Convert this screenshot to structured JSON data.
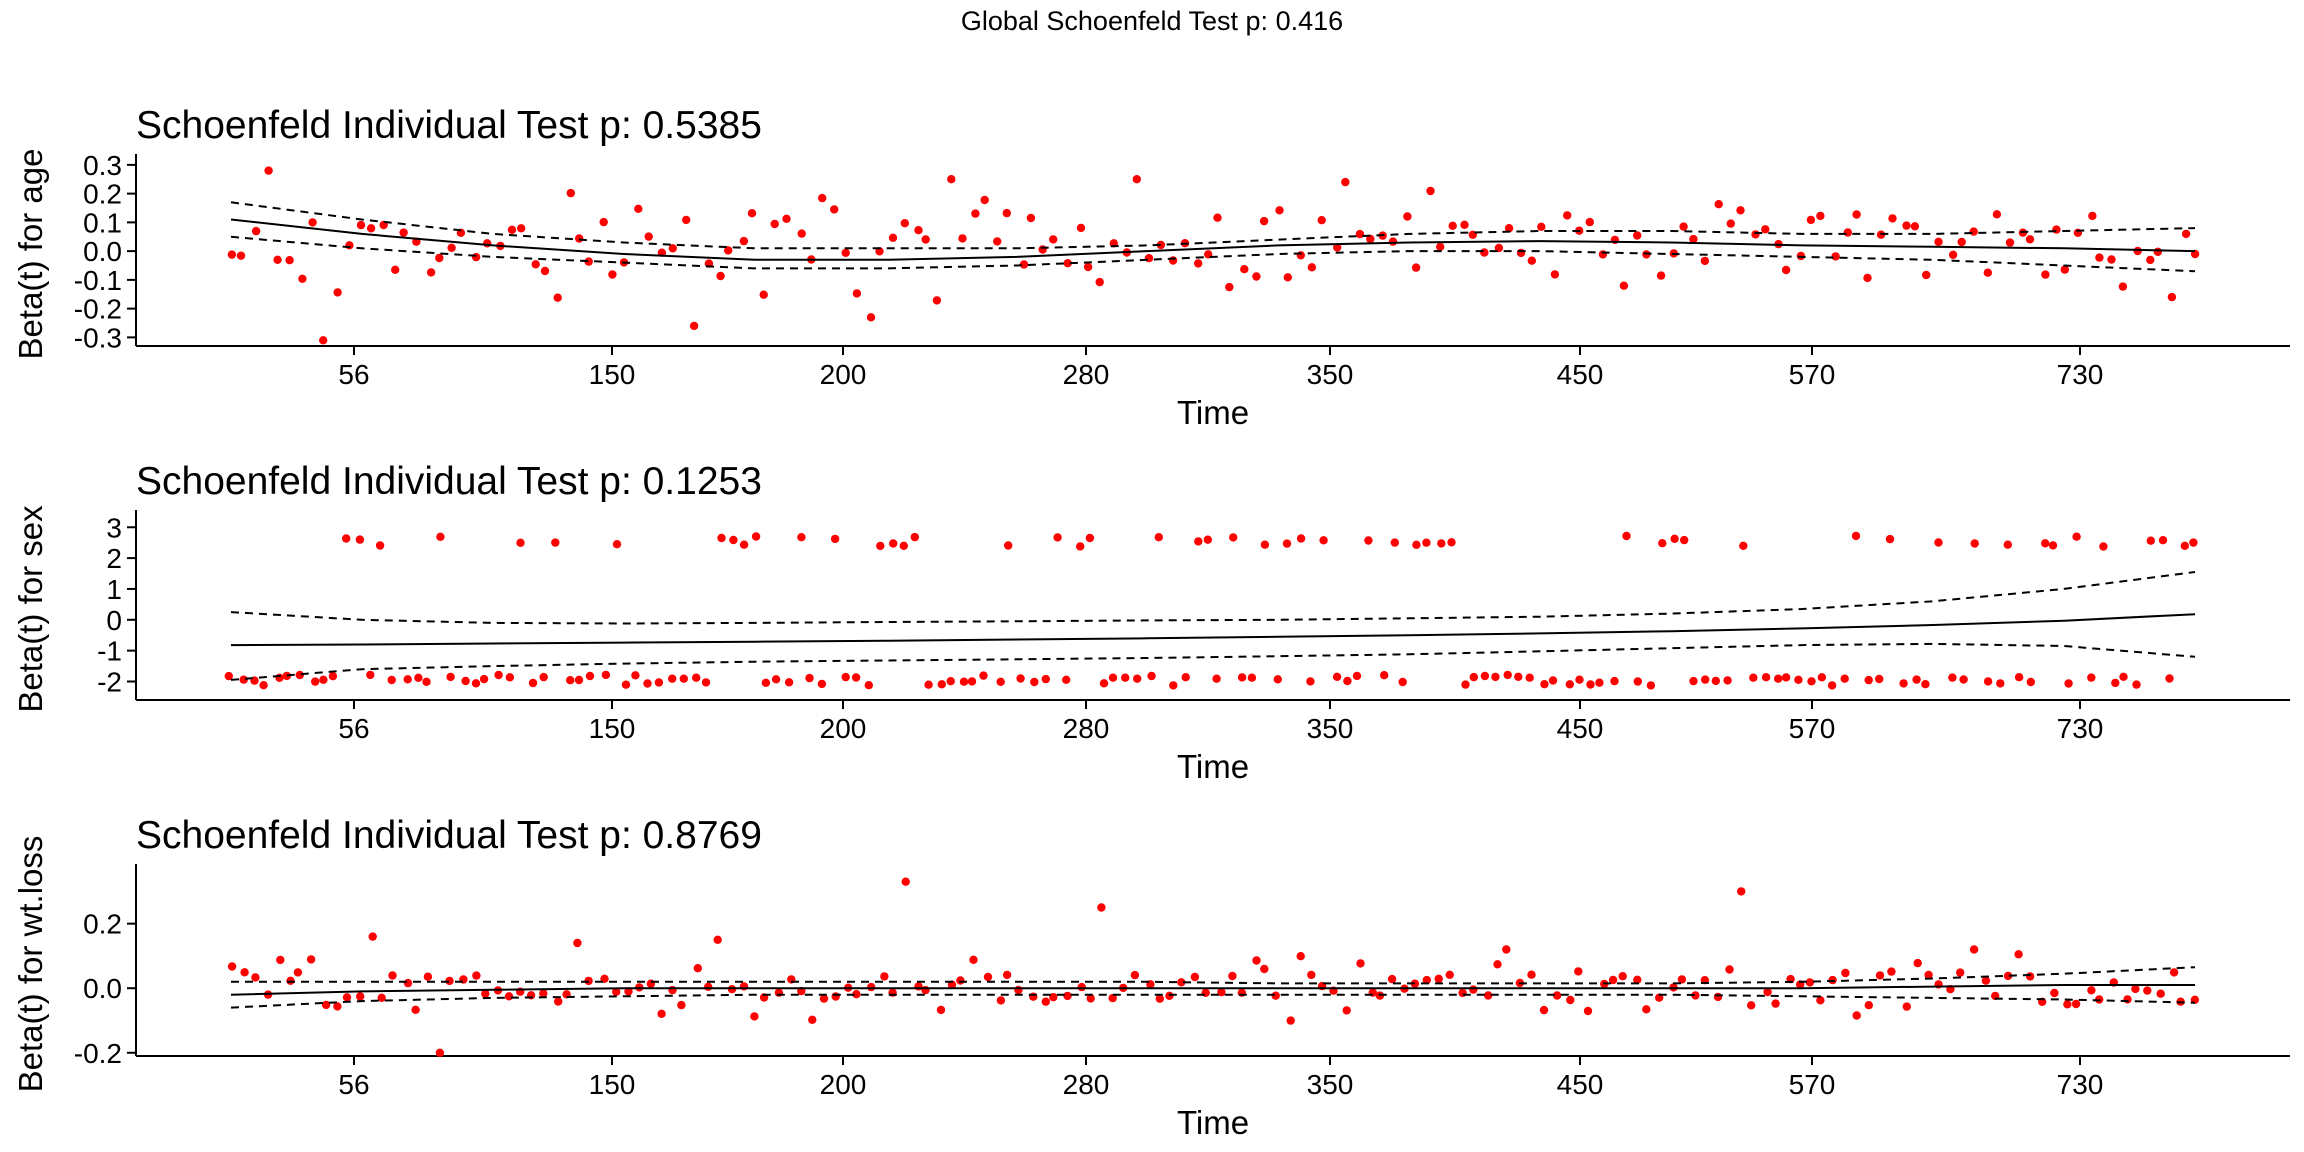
{
  "figure": {
    "title": "Global Schoenfeld Test p: 0.416"
  },
  "colors": {
    "points": "#ff0000",
    "lines": "#000000",
    "background": "#ffffff"
  },
  "chart_data": [
    {
      "type": "scatter",
      "title": "Schoenfeld Individual Test p: 0.5385",
      "xlabel": "Time",
      "ylabel": "Beta(t) for age",
      "xticks": [
        "56",
        "150",
        "200",
        "280",
        "350",
        "450",
        "570",
        "730"
      ],
      "yticks": [
        0.3,
        0.2,
        0.1,
        0.0,
        -0.1,
        -0.2,
        -0.3
      ],
      "ytick_labels": [
        "0.3",
        "0.2",
        "0.1",
        "0.0",
        "-0.1",
        "-0.2",
        "-0.3"
      ],
      "ylim": [
        -0.33,
        0.31
      ],
      "grid": false,
      "series": [
        {
          "role": "residuals",
          "marker": "point",
          "seed": 11,
          "kind": "cont",
          "base": 0.02,
          "spread": 0.11,
          "outliers": [
            [
              3,
              0.28
            ],
            [
              8,
              -0.31
            ],
            [
              40,
              -0.26
            ],
            [
              55,
              -0.23
            ],
            [
              62,
              0.25
            ],
            [
              78,
              0.25
            ],
            [
              96,
              0.24
            ]
          ]
        },
        {
          "role": "fit",
          "style": "solid",
          "values": [
            0.11,
            0.06,
            0.02,
            -0.01,
            -0.03,
            -0.03,
            -0.02,
            0.0,
            0.02,
            0.03,
            0.035,
            0.03,
            0.02,
            0.015,
            0.01,
            0.0
          ]
        },
        {
          "role": "upper-ci",
          "style": "dashed",
          "values": [
            0.17,
            0.11,
            0.06,
            0.03,
            0.01,
            0.01,
            0.01,
            0.02,
            0.04,
            0.06,
            0.07,
            0.07,
            0.06,
            0.06,
            0.07,
            0.08
          ]
        },
        {
          "role": "lower-ci",
          "style": "dashed",
          "values": [
            0.05,
            0.01,
            -0.02,
            -0.04,
            -0.06,
            -0.06,
            -0.05,
            -0.03,
            -0.01,
            0.0,
            0.0,
            -0.01,
            -0.02,
            -0.03,
            -0.05,
            -0.07
          ]
        }
      ]
    },
    {
      "type": "scatter",
      "title": "Schoenfeld Individual Test p: 0.1253",
      "xlabel": "Time",
      "ylabel": "Beta(t) for sex",
      "xticks": [
        "56",
        "150",
        "200",
        "280",
        "350",
        "450",
        "570",
        "730"
      ],
      "yticks": [
        3,
        2,
        1,
        0,
        -1,
        -2
      ],
      "ytick_labels": [
        "3",
        "2",
        "1",
        "0",
        "-1",
        "-2"
      ],
      "ylim": [
        -2.6,
        3.3
      ],
      "grid": false,
      "series": [
        {
          "role": "residuals",
          "marker": "point",
          "seed": 23,
          "kind": "binary",
          "hi": 2.55,
          "lo": -1.95,
          "spread": 0.18
        },
        {
          "role": "fit",
          "style": "solid",
          "values": [
            -0.82,
            -0.8,
            -0.77,
            -0.74,
            -0.71,
            -0.68,
            -0.64,
            -0.6,
            -0.55,
            -0.5,
            -0.44,
            -0.37,
            -0.28,
            -0.17,
            -0.03,
            0.18
          ]
        },
        {
          "role": "upper-ci",
          "style": "dashed",
          "values": [
            0.25,
            0.0,
            -0.1,
            -0.12,
            -0.1,
            -0.07,
            -0.05,
            -0.02,
            0.0,
            0.05,
            0.1,
            0.2,
            0.35,
            0.6,
            1.0,
            1.55
          ]
        },
        {
          "role": "lower-ci",
          "style": "dashed",
          "values": [
            -1.95,
            -1.6,
            -1.5,
            -1.42,
            -1.36,
            -1.32,
            -1.28,
            -1.24,
            -1.18,
            -1.12,
            -1.02,
            -0.92,
            -0.82,
            -0.78,
            -0.85,
            -1.2
          ]
        }
      ]
    },
    {
      "type": "scatter",
      "title": "Schoenfeld Individual Test p: 0.8769",
      "xlabel": "Time",
      "ylabel": "Beta(t) for wt.loss",
      "xticks": [
        "56",
        "150",
        "200",
        "280",
        "350",
        "450",
        "570",
        "730"
      ],
      "yticks": [
        0.2,
        0.0,
        -0.2
      ],
      "ytick_labels": [
        "0.2",
        "0.0",
        "-0.2"
      ],
      "ylim": [
        -0.21,
        0.36
      ],
      "grid": false,
      "series": [
        {
          "role": "residuals",
          "marker": "point",
          "seed": 37,
          "kind": "cont",
          "base": 0.0,
          "spread": 0.055,
          "outliers": [
            [
              12,
              0.16
            ],
            [
              18,
              -0.2
            ],
            [
              30,
              0.14
            ],
            [
              42,
              0.15
            ],
            [
              58,
              0.33
            ],
            [
              75,
              0.25
            ],
            [
              110,
              0.12
            ],
            [
              130,
              0.3
            ],
            [
              150,
              0.12
            ]
          ]
        },
        {
          "role": "fit",
          "style": "solid",
          "values": [
            -0.02,
            -0.01,
            -0.005,
            0.0,
            0.0,
            0.0,
            0.0,
            0.0,
            0.0,
            0.0,
            0.0,
            0.0,
            0.0,
            0.005,
            0.01,
            0.01
          ]
        },
        {
          "role": "upper-ci",
          "style": "dashed",
          "values": [
            0.02,
            0.02,
            0.02,
            0.02,
            0.02,
            0.02,
            0.02,
            0.02,
            0.015,
            0.015,
            0.015,
            0.015,
            0.02,
            0.03,
            0.045,
            0.065
          ]
        },
        {
          "role": "lower-ci",
          "style": "dashed",
          "values": [
            -0.06,
            -0.04,
            -0.03,
            -0.025,
            -0.02,
            -0.02,
            -0.02,
            -0.02,
            -0.02,
            -0.02,
            -0.02,
            -0.02,
            -0.025,
            -0.03,
            -0.035,
            -0.045
          ]
        }
      ]
    }
  ]
}
